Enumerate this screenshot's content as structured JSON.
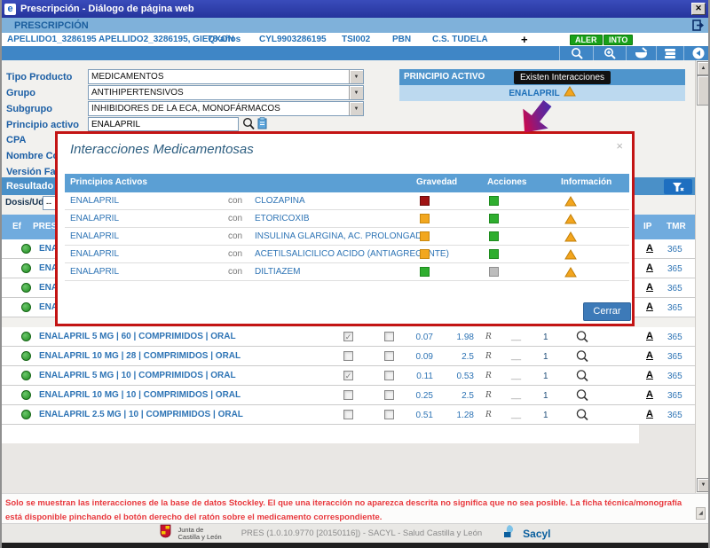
{
  "window": {
    "title": "Prescripción - Diálogo de página web"
  },
  "prescripcion_bar": {
    "title": "PRESCRIPCIÓN"
  },
  "patient": {
    "name": "APELLIDO1_3286195 APELLIDO2_3286195, GIEQXON",
    "age": "78 años",
    "card_id": "CYL9903286195",
    "tsi": "TSI002",
    "pbn": "PBN",
    "center": "C.S. TUDELA",
    "badges": [
      "ALER",
      "INTO"
    ]
  },
  "toolbar": {
    "icons": [
      "search-icon",
      "zoom-search-icon",
      "pharmacy-mortar-icon",
      "books-icon",
      "back-circle-icon"
    ]
  },
  "form": {
    "rows": [
      {
        "label": "Tipo Producto",
        "value": "MEDICAMENTOS"
      },
      {
        "label": "Grupo",
        "value": "ANTIHIPERTENSIVOS"
      },
      {
        "label": "Subgrupo",
        "value": "INHIBIDORES DE LA ECA, MONOFÁRMACOS"
      },
      {
        "label": "Principio activo",
        "value": "ENALAPRIL"
      }
    ],
    "partial_labels": [
      "CPA",
      "Nombre Come",
      "Versión Farmac"
    ]
  },
  "principio_panel": {
    "header": "PRINCIPIO ACTIVO",
    "value": "ENALAPRIL",
    "tooltip": "Existen Interacciones"
  },
  "results": {
    "header": "Resultado bú",
    "dose_label": "Dosis/Ud",
    "dose_value": "--",
    "left_columns": [
      "Ef",
      "PRES"
    ],
    "right_columns": [
      "IP",
      "TMR"
    ],
    "partial_rows": [
      {
        "name": "ENAL",
        "ip": "A",
        "tmr": "365"
      },
      {
        "name": "ENAL",
        "ip": "A",
        "tmr": "365"
      },
      {
        "name": "ENAL",
        "ip": "A",
        "tmr": "365"
      },
      {
        "name": "ENAL",
        "ip": "A",
        "tmr": "365"
      }
    ]
  },
  "modal": {
    "title": "Interacciones Medicamentosas",
    "columns": [
      "Principios Activos",
      "Gravedad",
      "Acciones",
      "Información"
    ],
    "con": "con",
    "rows": [
      {
        "left": "ENALAPRIL",
        "right": "CLOZAPINA",
        "gravedad": "red",
        "acciones": "green",
        "info": "warning"
      },
      {
        "left": "ENALAPRIL",
        "right": "ETORICOXIB",
        "gravedad": "orange",
        "acciones": "green",
        "info": "warning"
      },
      {
        "left": "ENALAPRIL",
        "right": "INSULINA GLARGINA, AC. PROLONGADA",
        "gravedad": "orange",
        "acciones": "green",
        "info": "warning"
      },
      {
        "left": "ENALAPRIL",
        "right": "ACETILSALICILICO ACIDO (ANTIAGREGANTE)",
        "gravedad": "orange",
        "acciones": "green",
        "info": "warning"
      },
      {
        "left": "ENALAPRIL",
        "right": "DILTIAZEM",
        "gravedad": "green",
        "acciones": "gray",
        "info": "warning"
      }
    ],
    "close_button": "Cerrar",
    "colors": {
      "red": "#a01313",
      "orange": "#f2a71f",
      "green": "#2fae2f",
      "gray": "#bdbdbd"
    },
    "border_colors": {
      "red": "#6d0d0d",
      "orange": "#c9880f",
      "green": "#1d8a1d",
      "gray": "#8f8f8f"
    },
    "warning_color": "#f3a51e",
    "highlight_border_color": "#c31414"
  },
  "medications": {
    "rows": [
      {
        "name": "ENALAPRIL 5 MG | 60 | COMPRIMIDOS | ORAL",
        "checked1": true,
        "checked2": false,
        "val1": "0.07",
        "val2": "1.98",
        "r": "R",
        "gap": "__",
        "qty": "1",
        "ip": "A",
        "tmr": "365"
      },
      {
        "name": "ENALAPRIL 10 MG | 28 | COMPRIMIDOS | ORAL",
        "checked1": false,
        "checked2": false,
        "val1": "0.09",
        "val2": "2.5",
        "r": "R",
        "gap": "__",
        "qty": "1",
        "ip": "A",
        "tmr": "365"
      },
      {
        "name": "ENALAPRIL 5 MG | 10 | COMPRIMIDOS | ORAL",
        "checked1": true,
        "checked2": false,
        "val1": "0.11",
        "val2": "0.53",
        "r": "R",
        "gap": "__",
        "qty": "1",
        "ip": "A",
        "tmr": "365"
      },
      {
        "name": "ENALAPRIL 10 MG | 10 | COMPRIMIDOS | ORAL",
        "checked1": false,
        "checked2": false,
        "val1": "0.25",
        "val2": "2.5",
        "r": "R",
        "gap": "__",
        "qty": "1",
        "ip": "A",
        "tmr": "365"
      },
      {
        "name": "ENALAPRIL 2.5 MG | 10 | COMPRIMIDOS | ORAL",
        "checked1": false,
        "checked2": false,
        "val1": "0.51",
        "val2": "1.28",
        "r": "R",
        "gap": "__",
        "qty": "1",
        "ip": "A",
        "tmr": "365"
      }
    ]
  },
  "disclaimer": "Solo se muestran las interacciones de la base de datos Stockley. El que una iteracción no aparezca descrita no significa que no sea posible. La ficha técnica/monografía está disponible pinchando el botón derecho del ratón sobre el medicamento correspondiente.",
  "footer": {
    "junta_line1": "Junta de",
    "junta_line2": "Castilla y León",
    "version": "PRES (1.0.10.9770 [20150116]) - SACYL - Salud Castilla y León",
    "sacyl": "Sacyl"
  },
  "icons": {
    "window_close": "✕",
    "modal_close": "×",
    "dropdown_arrow": "▼",
    "scroll_up": "▲",
    "scroll_down": "▼",
    "checkbox_check": "✓",
    "patient_add": "+",
    "ie_logo": "e"
  }
}
